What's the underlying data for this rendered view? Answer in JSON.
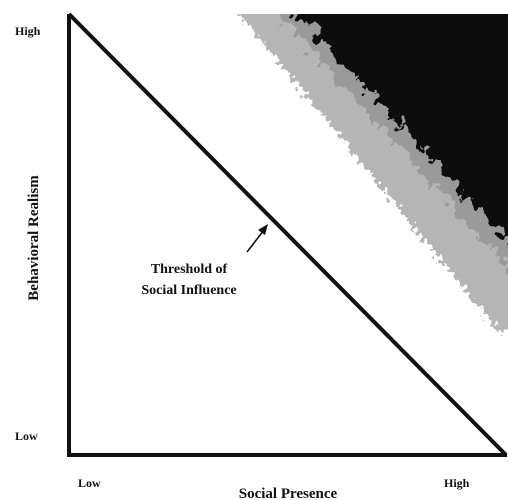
{
  "y_axis": {
    "label": "Behavioral Realism",
    "high": "High",
    "low": "Low"
  },
  "x_axis": {
    "label": "Social Presence",
    "low": "Low",
    "high": "High"
  },
  "annotation": {
    "lines": [
      "Threshold of",
      "Social Influence"
    ]
  }
}
